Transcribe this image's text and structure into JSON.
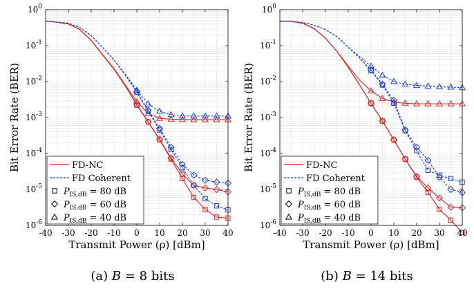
{
  "chart_data": [
    {
      "type": "line",
      "caption": "(a) B = 8 bits",
      "caption_prefix": "(a)",
      "caption_math": "B = 8 bits",
      "xlabel": "Transmit Power (ρ) [dBm]",
      "ylabel": "Bit Error Rate (BER)",
      "xlim": [
        -40,
        40
      ],
      "ylim": [
        1e-06,
        1
      ],
      "yscale": "log",
      "grid": true,
      "legend_placement": "bottom-left",
      "x": [
        -40,
        -35,
        -30,
        -25,
        -20,
        -15,
        -10,
        -5,
        0,
        5,
        10,
        15,
        20,
        25,
        30,
        35,
        40
      ],
      "series": [
        {
          "scheme": "FD-NC",
          "pis_db": 80,
          "marker": "square",
          "values": [
            0.48,
            0.45,
            0.4,
            0.28,
            0.14,
            0.055,
            0.022,
            0.0075,
            0.0022,
            0.00075,
            0.00024,
            7e-05,
            2e-05,
            6e-06,
            2.8e-06,
            1.7e-06,
            1.6e-06
          ]
        },
        {
          "scheme": "FD-NC",
          "pis_db": 60,
          "marker": "diamond",
          "values": [
            0.48,
            0.45,
            0.4,
            0.28,
            0.14,
            0.055,
            0.022,
            0.0075,
            0.0023,
            0.00076,
            0.00025,
            7.5e-05,
            2.7e-05,
            1.3e-05,
            1.1e-05,
            1e-05,
            8.5e-06
          ]
        },
        {
          "scheme": "FD-NC",
          "pis_db": 40,
          "marker": "triangle",
          "values": [
            0.48,
            0.45,
            0.4,
            0.28,
            0.14,
            0.056,
            0.023,
            0.008,
            0.0028,
            0.0013,
            0.00095,
            0.0009,
            0.00088,
            0.00087,
            0.00087,
            0.00087,
            0.00087
          ]
        },
        {
          "scheme": "FD Coherent",
          "pis_db": 80,
          "marker": "square",
          "values": [
            0.48,
            0.45,
            0.42,
            0.32,
            0.19,
            0.09,
            0.04,
            0.015,
            0.005,
            0.0015,
            0.00045,
            0.00013,
            4e-05,
            1.3e-05,
            5.5e-06,
            3.5e-06,
            2.7e-06
          ]
        },
        {
          "scheme": "FD Coherent",
          "pis_db": 60,
          "marker": "diamond",
          "values": [
            0.48,
            0.45,
            0.42,
            0.32,
            0.19,
            0.09,
            0.04,
            0.015,
            0.0052,
            0.0016,
            0.0005,
            0.00015,
            5e-05,
            2.5e-05,
            1.8e-05,
            1.6e-05,
            1.5e-05
          ]
        },
        {
          "scheme": "FD Coherent",
          "pis_db": 40,
          "marker": "triangle",
          "values": [
            0.48,
            0.45,
            0.42,
            0.32,
            0.19,
            0.09,
            0.04,
            0.016,
            0.0058,
            0.0024,
            0.0015,
            0.0012,
            0.0011,
            0.0011,
            0.0011,
            0.0011,
            0.0011
          ]
        }
      ]
    },
    {
      "type": "line",
      "caption": "(b) B = 14 bits",
      "caption_prefix": "(b)",
      "caption_math": "B = 14 bits",
      "xlabel": "Transmit Power (ρ) [dBm]",
      "ylabel": "Bit Error Rate (BER)",
      "xlim": [
        -40,
        40
      ],
      "ylim": [
        1e-06,
        1
      ],
      "yscale": "log",
      "grid": true,
      "legend_placement": "bottom-left",
      "x": [
        -40,
        -35,
        -30,
        -25,
        -20,
        -15,
        -10,
        -5,
        0,
        5,
        10,
        15,
        20,
        25,
        30,
        35,
        40
      ],
      "series": [
        {
          "scheme": "FD-NC",
          "pis_db": 80,
          "marker": "square",
          "values": [
            0.48,
            0.47,
            0.42,
            0.3,
            0.16,
            0.07,
            0.025,
            0.008,
            0.0025,
            0.0008,
            0.00024,
            7e-05,
            2.2e-05,
            8.2e-06,
            2.8e-06,
            1.4e-06,
            6.3e-07
          ]
        },
        {
          "scheme": "FD-NC",
          "pis_db": 60,
          "marker": "diamond",
          "values": [
            0.48,
            0.47,
            0.42,
            0.3,
            0.16,
            0.07,
            0.025,
            0.008,
            0.0025,
            0.0008,
            0.00024,
            7e-05,
            2.3e-05,
            1.1e-05,
            5.8e-06,
            3.2e-06,
            3.1e-06
          ]
        },
        {
          "scheme": "FD-NC",
          "pis_db": 40,
          "marker": "triangle",
          "values": [
            0.48,
            0.47,
            0.42,
            0.3,
            0.16,
            0.07,
            0.027,
            0.011,
            0.0055,
            0.0034,
            0.0027,
            0.0025,
            0.0024,
            0.0024,
            0.0024,
            0.0024,
            0.0024
          ]
        },
        {
          "scheme": "FD Coherent",
          "pis_db": 80,
          "marker": "square",
          "values": [
            0.48,
            0.47,
            0.44,
            0.37,
            0.28,
            0.18,
            0.09,
            0.045,
            0.02,
            0.008,
            0.0025,
            0.00043,
            0.00012,
            3.4e-05,
            2.5e-05,
            2e-05,
            1.6e-05
          ]
        },
        {
          "scheme": "FD Coherent",
          "pis_db": 60,
          "marker": "diamond",
          "values": [
            0.48,
            0.47,
            0.44,
            0.37,
            0.28,
            0.18,
            0.09,
            0.045,
            0.021,
            0.0085,
            0.003,
            0.00045,
            0.00015,
            6.5e-05,
            2.2e-05,
            1e-05,
            8.2e-06
          ]
        },
        {
          "scheme": "FD Coherent",
          "pis_db": 40,
          "marker": "triangle",
          "values": [
            0.48,
            0.47,
            0.44,
            0.37,
            0.28,
            0.18,
            0.09,
            0.05,
            0.027,
            0.015,
            0.01,
            0.0085,
            0.0078,
            0.0075,
            0.0072,
            0.007,
            0.0068
          ]
        }
      ]
    }
  ],
  "legend": [
    {
      "label": "FD-NC",
      "kind": "line",
      "color": "#e02020",
      "dashed": false
    },
    {
      "label": "FD Coherent",
      "kind": "line",
      "color": "#1a3fd8",
      "dashed": true
    },
    {
      "label_sym": "P",
      "label_sub": "IS,dB",
      "label_value": " = 80 dB",
      "kind": "marker",
      "marker": "square"
    },
    {
      "label_sym": "P",
      "label_sub": "IS,dB",
      "label_value": " = 60 dB",
      "kind": "marker",
      "marker": "diamond"
    },
    {
      "label_sym": "P",
      "label_sub": "IS,dB",
      "label_value": " = 40 dB",
      "kind": "marker",
      "marker": "triangle"
    }
  ],
  "colors": {
    "nc": "#e02020",
    "coherent": "#1a3fd8",
    "grid": "#e3e3e3",
    "axis": "#000000"
  }
}
